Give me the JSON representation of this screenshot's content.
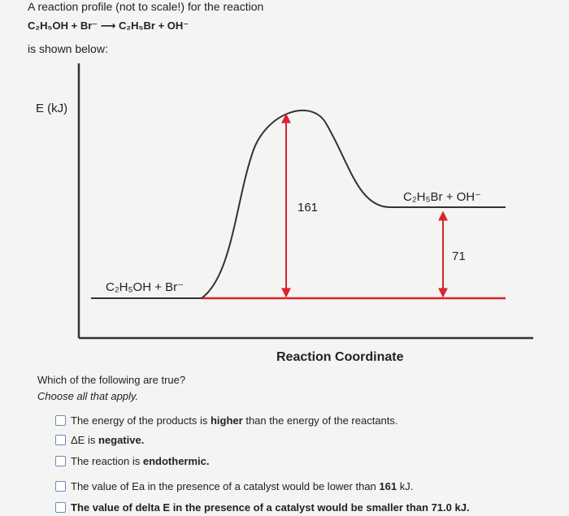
{
  "intro": "A reaction profile (not to scale!) for the reaction",
  "equation": "C₂H₅OH + Br⁻ ⟶ C₂H₅Br + OH⁻",
  "shown": "is shown below:",
  "diagram": {
    "y_label": "E (kJ)",
    "x_label": "Reaction Coordinate",
    "reactants": "C₂H₅OH + Br⁻",
    "products": "C₂H₅Br + OH⁻",
    "activation": 161,
    "delta": 71
  },
  "question": "Which of the following are true?",
  "instruction": "Choose all that apply.",
  "options": [
    [
      {
        "text": "The energy of the products is ",
        "bold": false
      },
      {
        "text": "higher",
        "bold": true
      },
      {
        "text": " than the energy of the reactants.",
        "bold": false
      }
    ],
    [
      {
        "text": "ΔE is ",
        "bold": false
      },
      {
        "text": "negative.",
        "bold": true
      }
    ],
    [
      {
        "text": "The reaction is ",
        "bold": false
      },
      {
        "text": "endothermic.",
        "bold": true
      }
    ],
    [
      {
        "text": "The value of Ea in the presence of a catalyst would be lower than ",
        "bold": false
      },
      {
        "text": "161",
        "bold": true
      },
      {
        "text": " kJ.",
        "bold": false
      }
    ],
    [
      {
        "text": "The value of delta E in the presence of a catalyst would be smaller than 71.0 kJ.",
        "bold": true
      }
    ]
  ]
}
